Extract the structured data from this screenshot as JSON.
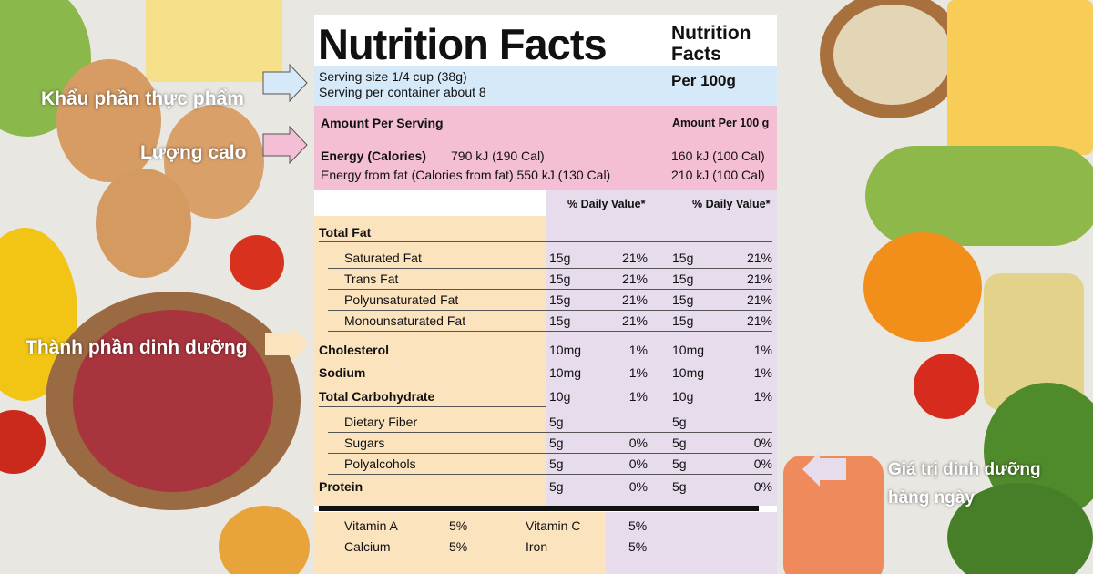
{
  "labels": {
    "serving_label": "Khẩu phần thực phẩm",
    "calorie_label": "Lượng calo",
    "nutrients_label": "Thành phần dinh dưỡng",
    "daily_label_line1": "Giá trị dinh dưỡng",
    "daily_label_line2": "hàng ngày"
  },
  "panel": {
    "title": "Nutrition Facts",
    "title_small": "Nutrition Facts",
    "per_100g": "Per 100g",
    "serving_size": "Serving size 1/4 cup (38g)",
    "servings_per_container": "Serving per container about 8",
    "amount_per_serving": "Amount Per Serving",
    "amount_per_100g": "Amount Per 100 g",
    "energy_label": "Energy (Calories)",
    "energy_serving": "790 kJ (190 Cal)",
    "energy_100g": "160 kJ (100 Cal)",
    "energy_fat_label": "Energy from fat (Calories from fat) 550 kJ (130 Cal)",
    "energy_fat_100g": "210 kJ (100 Cal)",
    "dv_header_1": "% Daily Value*",
    "dv_header_2": "% Daily Value*",
    "total_fat": "Total Fat"
  },
  "nutrients": [
    {
      "name": "Saturated Fat",
      "amt1": "15g",
      "dv1": "21%",
      "amt2": "15g",
      "dv2": "21%"
    },
    {
      "name": "Trans Fat",
      "amt1": "15g",
      "dv1": "21%",
      "amt2": "15g",
      "dv2": "21%"
    },
    {
      "name": "Polyunsaturated Fat",
      "amt1": "15g",
      "dv1": "21%",
      "amt2": "15g",
      "dv2": "21%"
    },
    {
      "name": "Monounsaturated Fat",
      "amt1": "15g",
      "dv1": "21%",
      "amt2": "15g",
      "dv2": "21%"
    },
    {
      "name": "Cholesterol",
      "amt1": "10mg",
      "dv1": "1%",
      "amt2": "10mg",
      "dv2": "1%"
    },
    {
      "name": "Sodium",
      "amt1": "10mg",
      "dv1": "1%",
      "amt2": "10mg",
      "dv2": "1%"
    },
    {
      "name": "Total Carbohydrate",
      "amt1": "10g",
      "dv1": "1%",
      "amt2": "10g",
      "dv2": "1%"
    },
    {
      "name": "Dietary Fiber",
      "amt1": "5g",
      "dv1": "",
      "amt2": "5g",
      "dv2": ""
    },
    {
      "name": "Sugars",
      "amt1": "5g",
      "dv1": "0%",
      "amt2": "5g",
      "dv2": "0%"
    },
    {
      "name": "Polyalcohols",
      "amt1": "5g",
      "dv1": "0%",
      "amt2": "5g",
      "dv2": "0%"
    },
    {
      "name": "Protein",
      "amt1": "5g",
      "dv1": "0%",
      "amt2": "5g",
      "dv2": "0%"
    }
  ],
  "vitamins": {
    "vit_a": "Vitamin   A",
    "vit_a_val": "5%",
    "vit_c": "Vitamin   C",
    "vit_c_val": "5%",
    "calcium": "Calcium",
    "calcium_val": "5%",
    "iron": "Iron",
    "iron_val": "5%"
  }
}
